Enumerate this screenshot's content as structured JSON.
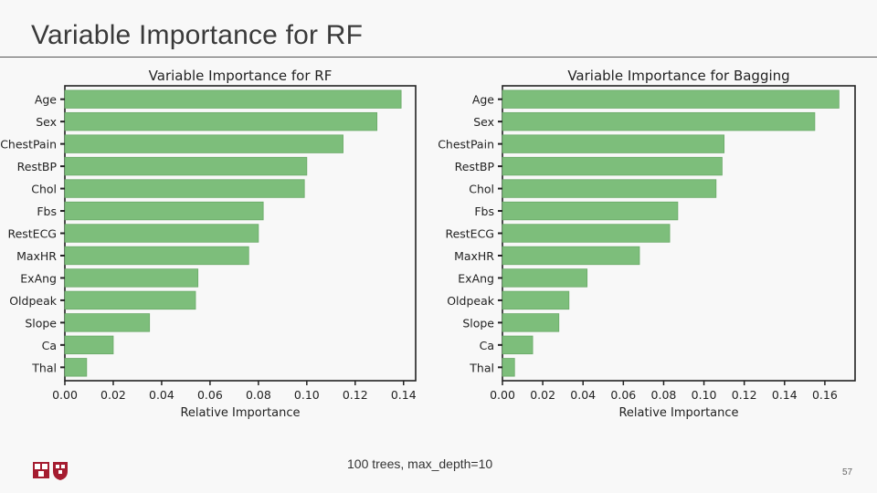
{
  "slide": {
    "title": "Variable Importance for RF",
    "caption": "100 trees, max_depth=10",
    "page_number": "57"
  },
  "colors": {
    "bar": "#7dbe7b",
    "bar_edge": "#6aaa68",
    "axis": "#222222"
  },
  "chart_data": [
    {
      "type": "bar",
      "orientation": "horizontal",
      "title": "Variable Importance for RF",
      "xlabel": "Relative Importance",
      "ylabel": "",
      "categories": [
        "Age",
        "Sex",
        "ChestPain",
        "RestBP",
        "Chol",
        "Fbs",
        "RestECG",
        "MaxHR",
        "ExAng",
        "Oldpeak",
        "Slope",
        "Ca",
        "Thal"
      ],
      "values": [
        0.139,
        0.129,
        0.115,
        0.1,
        0.099,
        0.082,
        0.08,
        0.076,
        0.055,
        0.054,
        0.035,
        0.02,
        0.009
      ],
      "xlim": [
        0,
        0.145
      ],
      "xticks": [
        "0.00",
        "0.02",
        "0.04",
        "0.06",
        "0.08",
        "0.10",
        "0.12",
        "0.14"
      ],
      "xtick_values": [
        0,
        0.02,
        0.04,
        0.06,
        0.08,
        0.1,
        0.12,
        0.14
      ],
      "grid": false
    },
    {
      "type": "bar",
      "orientation": "horizontal",
      "title": "Variable Importance for Bagging",
      "xlabel": "Relative Importance",
      "ylabel": "",
      "categories": [
        "Age",
        "Sex",
        "ChestPain",
        "RestBP",
        "Chol",
        "Fbs",
        "RestECG",
        "MaxHR",
        "ExAng",
        "Oldpeak",
        "Slope",
        "Ca",
        "Thal"
      ],
      "values": [
        0.167,
        0.155,
        0.11,
        0.109,
        0.106,
        0.087,
        0.083,
        0.068,
        0.042,
        0.033,
        0.028,
        0.015,
        0.006
      ],
      "xlim": [
        0,
        0.175
      ],
      "xticks": [
        "0.00",
        "0.02",
        "0.04",
        "0.06",
        "0.08",
        "0.10",
        "0.12",
        "0.14",
        "0.16"
      ],
      "xtick_values": [
        0,
        0.02,
        0.04,
        0.06,
        0.08,
        0.1,
        0.12,
        0.14,
        0.16
      ],
      "grid": false
    }
  ]
}
